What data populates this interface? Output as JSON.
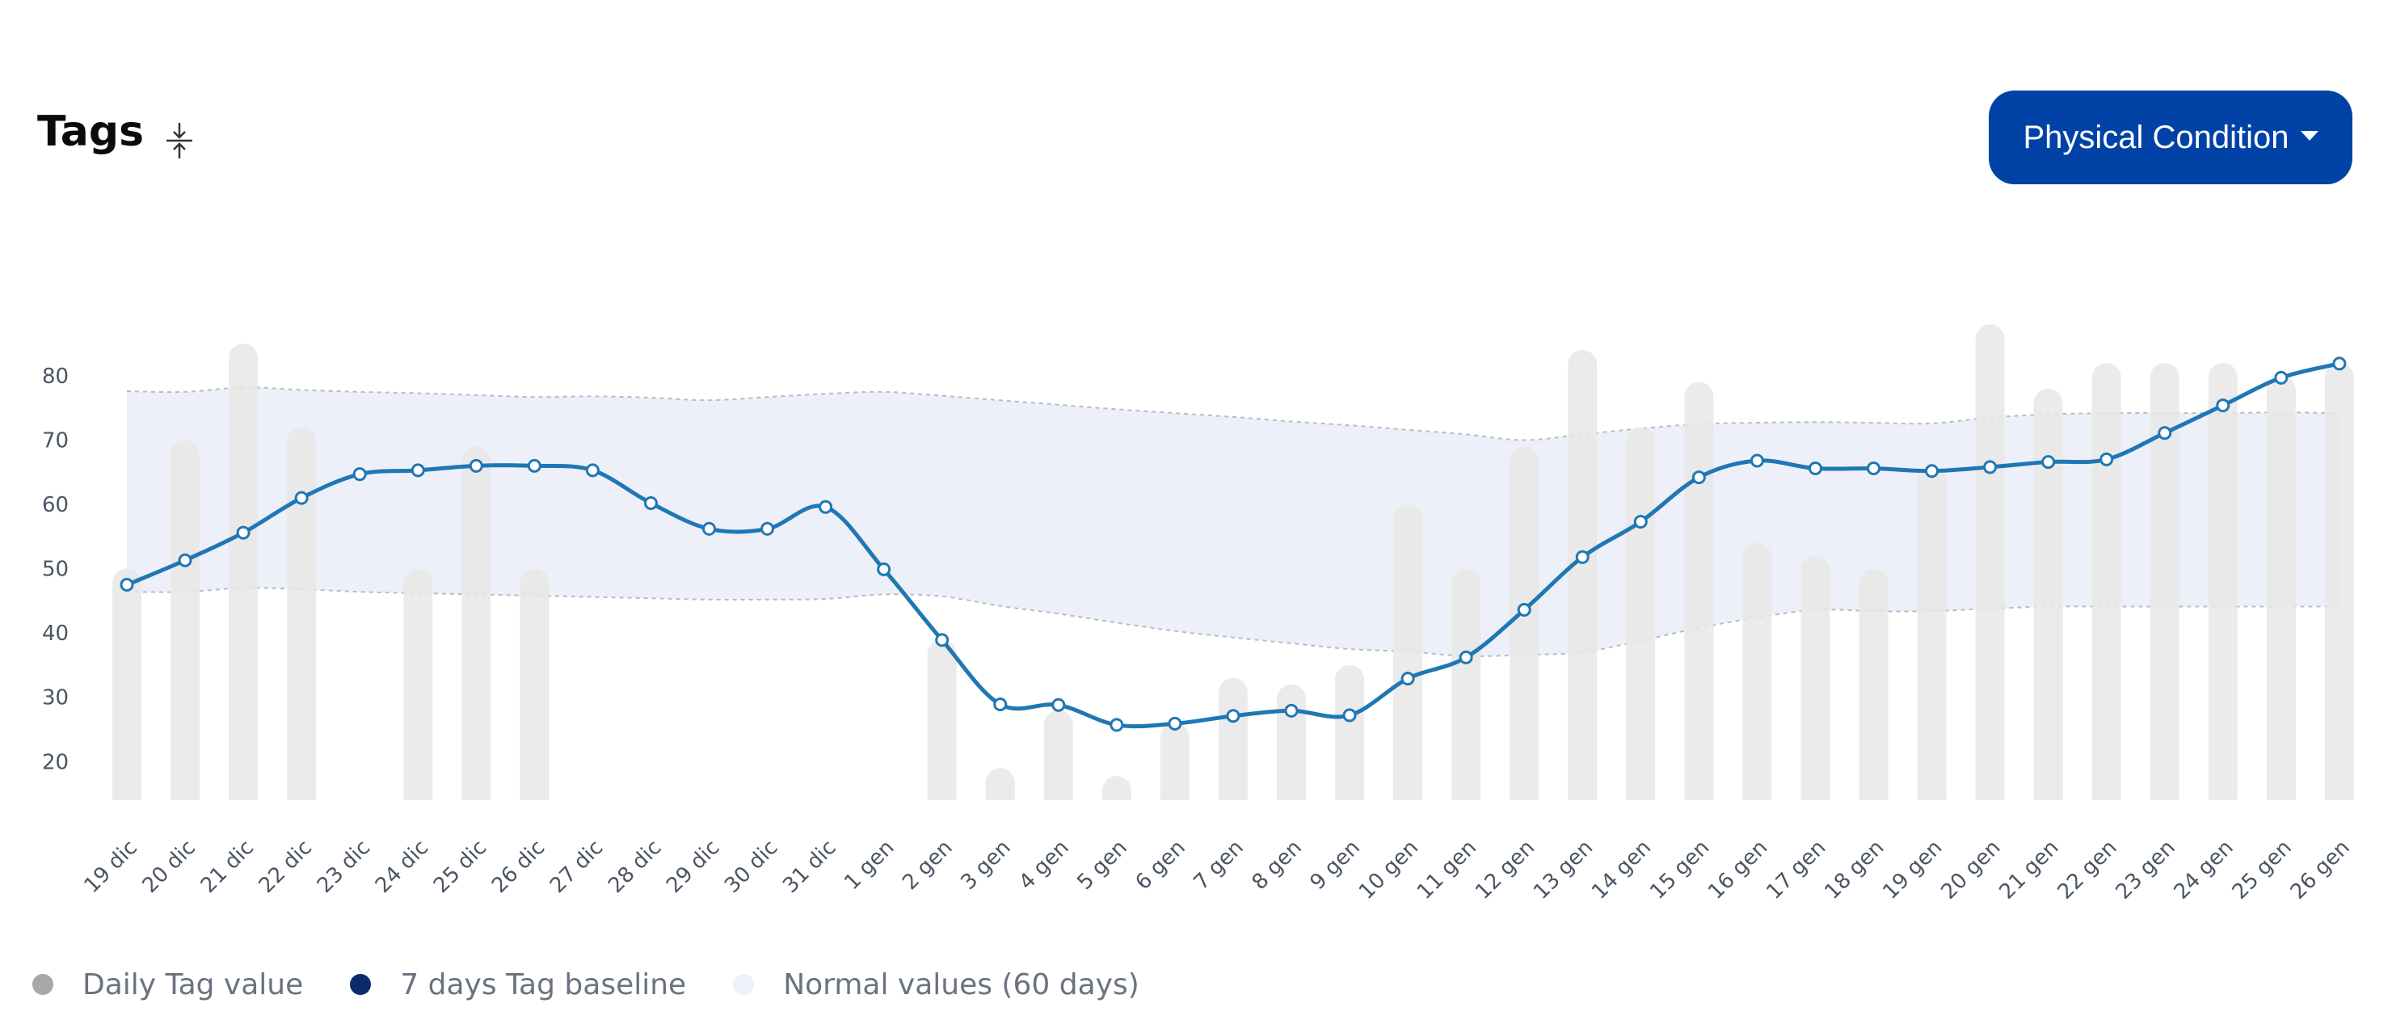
{
  "header": {
    "title": "Tags",
    "dropdown_label": "Physical Condition",
    "collapse_icon": "collapse-vertical-icon"
  },
  "legend": [
    {
      "label": "Daily Tag value",
      "color": "#a8a8a8"
    },
    {
      "label": "7 days Tag baseline",
      "color": "#0d2a6b"
    },
    {
      "label": "Normal values (60 days)",
      "color": "#eef1f8"
    }
  ],
  "colors": {
    "bar": "#e8e8e8",
    "line": "#1f77b4",
    "band_fill": "#edf0f8",
    "band_border": "#b7bcc6",
    "button": "#0042a6"
  },
  "chart_data": {
    "type": "bar",
    "ylim": [
      14,
      88
    ],
    "yticks": [
      20,
      30,
      40,
      50,
      60,
      70,
      80
    ],
    "categories": [
      "19 dic",
      "20 dic",
      "21 dic",
      "22 dic",
      "23 dic",
      "24 dic",
      "25 dic",
      "26 dic",
      "27 dic",
      "28 dic",
      "29 dic",
      "30 dic",
      "31 dic",
      "1 gen",
      "2 gen",
      "3 gen",
      "4 gen",
      "5 gen",
      "6 gen",
      "7 gen",
      "8 gen",
      "9 gen",
      "10 gen",
      "11 gen",
      "12 gen",
      "13 gen",
      "14 gen",
      "15 gen",
      "16 gen",
      "17 gen",
      "18 gen",
      "19 gen",
      "20 gen",
      "21 gen",
      "22 gen",
      "23 gen",
      "24 gen",
      "25 gen",
      "26 gen"
    ],
    "series": [
      {
        "name": "Daily Tag value",
        "type": "bar",
        "values": [
          50,
          70,
          85,
          72,
          null,
          50,
          69,
          50,
          null,
          null,
          null,
          null,
          null,
          null,
          39,
          19,
          28,
          17,
          26,
          33,
          32,
          35,
          60,
          50,
          69,
          84,
          72,
          79,
          54,
          52,
          50,
          66,
          88,
          78,
          82,
          82,
          82,
          80,
          82
        ]
      },
      {
        "name": "7 days Tag baseline",
        "type": "line",
        "values": [
          47.5,
          51.3,
          55.6,
          61,
          64.7,
          65.3,
          66,
          66,
          65.3,
          60.2,
          56.2,
          56.2,
          59.6,
          49.9,
          38.9,
          28.9,
          28.8,
          25.7,
          25.9,
          27.1,
          27.9,
          27.2,
          32.9,
          36.2,
          43.6,
          51.8,
          57.3,
          64.2,
          66.8,
          65.6,
          65.6,
          65.2,
          65.8,
          66.6,
          67,
          71.1,
          75.4,
          79.7,
          81.9
        ]
      },
      {
        "name": "Normal values (60 days)",
        "type": "area",
        "upper": [
          77.6,
          77.5,
          78.2,
          77.8,
          77.5,
          77.3,
          77,
          76.7,
          76.8,
          76.6,
          76.2,
          76.7,
          77.2,
          77.5,
          76.9,
          76.2,
          75.5,
          74.8,
          74.2,
          73.6,
          72.9,
          72.3,
          71.6,
          70.9,
          70,
          70.9,
          71.8,
          72.5,
          72.7,
          72.8,
          72.7,
          72.6,
          73.5,
          74,
          74.2,
          74.2,
          74.2,
          74.3,
          74.2
        ],
        "lower": [
          46.4,
          46.4,
          47,
          46.8,
          46.4,
          46.2,
          46,
          45.8,
          45.6,
          45.4,
          45.2,
          45.2,
          45.3,
          46,
          45.7,
          44.2,
          43,
          41.6,
          40.3,
          39.3,
          38.4,
          37.5,
          37.1,
          36.4,
          36.6,
          37,
          38.8,
          40.8,
          42.4,
          43.6,
          43.4,
          43.4,
          43.8,
          44.1,
          44.1,
          44.1,
          44.1,
          44.1,
          44.1
        ]
      }
    ]
  }
}
